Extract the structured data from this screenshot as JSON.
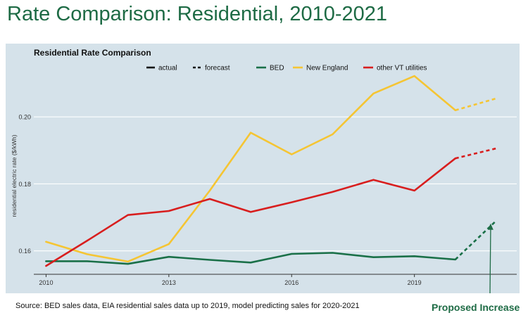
{
  "slide": {
    "title": "Rate Comparison: Residential, 2010-2021",
    "source_note": "Source: BED sales data, EIA residential sales data up to 2019, model predicting sales for 2020-2021",
    "annotation": "Proposed Increase"
  },
  "colors": {
    "title": "#1e6b45",
    "panel": "#d5e2ea",
    "BED": "#1a7048",
    "New England": "#f5c533",
    "other VT utilities": "#d81e1e",
    "arrow": "#1e6b45"
  },
  "chart_data": {
    "type": "line",
    "title": "Residential Rate Comparison",
    "xlabel": "",
    "ylabel": "residential electric rate ($/kWh)",
    "xlim": [
      2009.7,
      2021.5
    ],
    "ylim": [
      0.153,
      0.216
    ],
    "x_ticks": [
      2010,
      2013,
      2016,
      2019
    ],
    "y_ticks": [
      0.16,
      0.18,
      0.2
    ],
    "y_tick_labels": [
      "0.16",
      "0.18",
      "0.20"
    ],
    "grid": true,
    "legend": {
      "position": "top",
      "style_entries": [
        {
          "label": "actual",
          "dash": "solid"
        },
        {
          "label": "forecast",
          "dash": "dashed"
        }
      ],
      "series_entries": [
        "BED",
        "New England",
        "other VT utilities"
      ]
    },
    "series": [
      {
        "name": "BED",
        "actual": {
          "x": [
            2010,
            2011,
            2012,
            2013,
            2014,
            2015,
            2016,
            2017,
            2018,
            2019,
            2020
          ],
          "y": [
            0.1569,
            0.1569,
            0.1561,
            0.1582,
            0.1573,
            0.1565,
            0.1591,
            0.1594,
            0.1581,
            0.1584,
            0.1574
          ]
        },
        "forecast": {
          "x": [
            2020,
            2021
          ],
          "y": [
            0.1574,
            0.169
          ]
        }
      },
      {
        "name": "New England",
        "actual": {
          "x": [
            2010,
            2011,
            2012,
            2013,
            2014,
            2015,
            2016,
            2017,
            2018,
            2019,
            2020
          ],
          "y": [
            0.1627,
            0.159,
            0.1568,
            0.162,
            0.178,
            0.1953,
            0.1888,
            0.1948,
            0.207,
            0.2122,
            0.202
          ]
        },
        "forecast": {
          "x": [
            2020,
            2021
          ],
          "y": [
            0.202,
            0.2055
          ]
        }
      },
      {
        "name": "other VT utilities",
        "actual": {
          "x": [
            2010,
            2011,
            2012,
            2013,
            2014,
            2015,
            2016,
            2017,
            2018,
            2019,
            2020
          ],
          "y": [
            0.1555,
            0.163,
            0.1707,
            0.1719,
            0.1755,
            0.1716,
            0.1745,
            0.1776,
            0.1812,
            0.178,
            0.1876
          ]
        },
        "forecast": {
          "x": [
            2020,
            2021
          ],
          "y": [
            0.1876,
            0.1906
          ]
        }
      }
    ]
  }
}
